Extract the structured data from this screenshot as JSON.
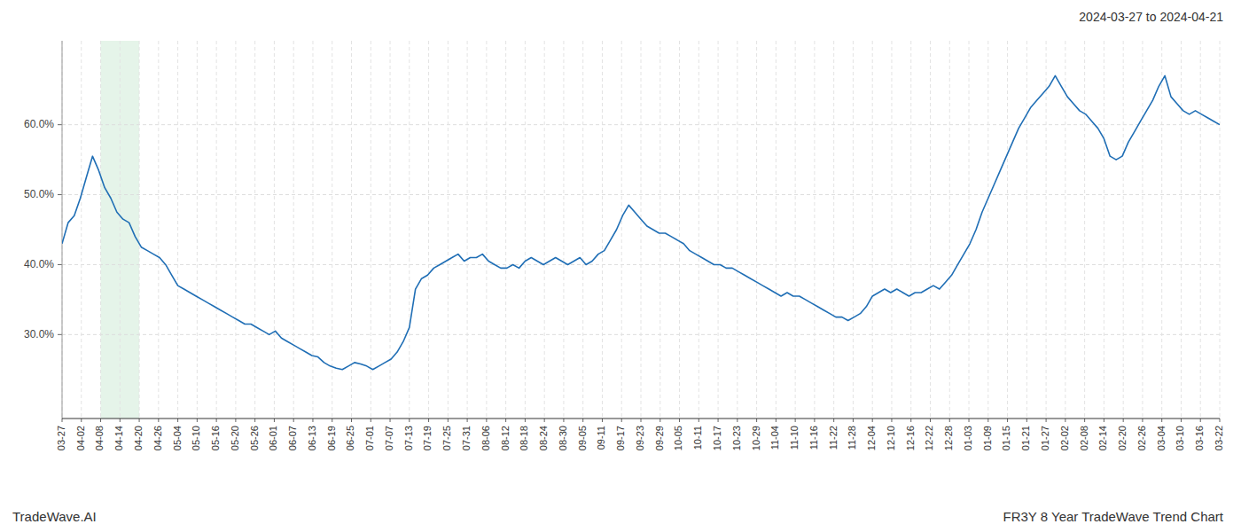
{
  "chart_data": {
    "type": "line",
    "title": "2024-03-27 to 2024-04-21",
    "annotations": [
      "TradeWave.AI",
      "FR3Y 8 Year TradeWave Trend Chart"
    ],
    "color": "#1f6eb5",
    "grid": true,
    "ylim": [
      18.0,
      72.0
    ],
    "yticks": [
      {
        "value": 30.0,
        "label": "30.0%"
      },
      {
        "value": 40.0,
        "label": "40.0%"
      },
      {
        "value": 50.0,
        "label": "50.0%"
      },
      {
        "value": 60.0,
        "label": "60.0%"
      }
    ],
    "xlim": [
      0,
      60
    ],
    "xticks": [
      {
        "value": 0,
        "label": "03-27"
      },
      {
        "value": 1,
        "label": "04-02"
      },
      {
        "value": 2,
        "label": "04-08"
      },
      {
        "value": 3,
        "label": "04-14"
      },
      {
        "value": 4,
        "label": "04-20"
      },
      {
        "value": 5,
        "label": "04-26"
      },
      {
        "value": 6,
        "label": "05-04"
      },
      {
        "value": 7,
        "label": "05-10"
      },
      {
        "value": 8,
        "label": "05-16"
      },
      {
        "value": 9,
        "label": "05-20"
      },
      {
        "value": 10,
        "label": "05-26"
      },
      {
        "value": 11,
        "label": "06-01"
      },
      {
        "value": 12,
        "label": "06-07"
      },
      {
        "value": 13,
        "label": "06-13"
      },
      {
        "value": 14,
        "label": "06-19"
      },
      {
        "value": 15,
        "label": "06-25"
      },
      {
        "value": 16,
        "label": "07-01"
      },
      {
        "value": 17,
        "label": "07-07"
      },
      {
        "value": 18,
        "label": "07-13"
      },
      {
        "value": 19,
        "label": "07-19"
      },
      {
        "value": 20,
        "label": "07-25"
      },
      {
        "value": 21,
        "label": "07-31"
      },
      {
        "value": 22,
        "label": "08-06"
      },
      {
        "value": 23,
        "label": "08-12"
      },
      {
        "value": 24,
        "label": "08-18"
      },
      {
        "value": 25,
        "label": "08-24"
      },
      {
        "value": 26,
        "label": "08-30"
      },
      {
        "value": 27,
        "label": "09-05"
      },
      {
        "value": 28,
        "label": "09-11"
      },
      {
        "value": 29,
        "label": "09-17"
      },
      {
        "value": 30,
        "label": "09-23"
      },
      {
        "value": 31,
        "label": "09-29"
      },
      {
        "value": 32,
        "label": "10-05"
      },
      {
        "value": 33,
        "label": "10-11"
      },
      {
        "value": 34,
        "label": "10-17"
      },
      {
        "value": 35,
        "label": "10-23"
      },
      {
        "value": 36,
        "label": "10-29"
      },
      {
        "value": 37,
        "label": "11-04"
      },
      {
        "value": 38,
        "label": "11-10"
      },
      {
        "value": 39,
        "label": "11-16"
      },
      {
        "value": 40,
        "label": "11-22"
      },
      {
        "value": 41,
        "label": "11-28"
      },
      {
        "value": 42,
        "label": "12-04"
      },
      {
        "value": 43,
        "label": "12-10"
      },
      {
        "value": 44,
        "label": "12-16"
      },
      {
        "value": 45,
        "label": "12-22"
      },
      {
        "value": 46,
        "label": "12-28"
      },
      {
        "value": 47,
        "label": "01-03"
      },
      {
        "value": 48,
        "label": "01-09"
      },
      {
        "value": 49,
        "label": "01-15"
      },
      {
        "value": 50,
        "label": "01-21"
      },
      {
        "value": 51,
        "label": "01-27"
      },
      {
        "value": 52,
        "label": "02-02"
      },
      {
        "value": 53,
        "label": "02-08"
      },
      {
        "value": 54,
        "label": "02-14"
      },
      {
        "value": 55,
        "label": "02-20"
      },
      {
        "value": 56,
        "label": "02-26"
      },
      {
        "value": 57,
        "label": "03-04"
      },
      {
        "value": 58,
        "label": "03-10"
      },
      {
        "value": 59,
        "label": "03-16"
      },
      {
        "value": 60,
        "label": "03-22"
      }
    ],
    "shade": {
      "x": [
        2,
        4
      ],
      "color": "#d4edda"
    },
    "values": [
      43.0,
      46.0,
      47.0,
      49.5,
      52.5,
      55.5,
      53.5,
      51.0,
      49.5,
      47.5,
      46.5,
      46.0,
      44.0,
      42.5,
      42.0,
      41.5,
      41.0,
      40.0,
      38.5,
      37.0,
      36.5,
      36.0,
      35.5,
      35.0,
      34.5,
      34.0,
      33.5,
      33.0,
      32.5,
      32.0,
      31.5,
      31.5,
      31.0,
      30.5,
      30.0,
      30.5,
      29.5,
      29.0,
      28.5,
      28.0,
      27.5,
      27.0,
      26.8,
      26.0,
      25.5,
      25.2,
      25.0,
      25.5,
      26.0,
      25.8,
      25.5,
      25.0,
      25.5,
      26.0,
      26.5,
      27.5,
      29.0,
      31.0,
      36.5,
      38.0,
      38.5,
      39.5,
      40.0,
      40.5,
      41.0,
      41.5,
      40.5,
      41.0,
      41.0,
      41.5,
      40.5,
      40.0,
      39.5,
      39.5,
      40.0,
      39.5,
      40.5,
      41.0,
      40.5,
      40.0,
      40.5,
      41.0,
      40.5,
      40.0,
      40.5,
      41.0,
      40.0,
      40.5,
      41.5,
      42.0,
      43.5,
      45.0,
      47.0,
      48.5,
      47.5,
      46.5,
      45.5,
      45.0,
      44.5,
      44.5,
      44.0,
      43.5,
      43.0,
      42.0,
      41.5,
      41.0,
      40.5,
      40.0,
      40.0,
      39.5,
      39.5,
      39.0,
      38.5,
      38.0,
      37.5,
      37.0,
      36.5,
      36.0,
      35.5,
      36.0,
      35.5,
      35.5,
      35.0,
      34.5,
      34.0,
      33.5,
      33.0,
      32.5,
      32.5,
      32.0,
      32.5,
      33.0,
      34.0,
      35.5,
      36.0,
      36.5,
      36.0,
      36.5,
      36.0,
      35.5,
      36.0,
      36.0,
      36.5,
      37.0,
      36.5,
      37.5,
      38.5,
      40.0,
      41.5,
      43.0,
      45.0,
      47.5,
      49.5,
      51.5,
      53.5,
      55.5,
      57.5,
      59.5,
      61.0,
      62.5,
      63.5,
      64.5,
      65.5,
      67.0,
      65.5,
      64.0,
      63.0,
      62.0,
      61.5,
      60.5,
      59.5,
      58.0,
      55.5,
      55.0,
      55.5,
      57.5,
      59.0,
      60.5,
      62.0,
      63.5,
      65.5,
      67.0,
      64.0,
      63.0,
      62.0,
      61.5,
      62.0,
      61.5,
      61.0,
      60.5,
      60.0
    ]
  }
}
